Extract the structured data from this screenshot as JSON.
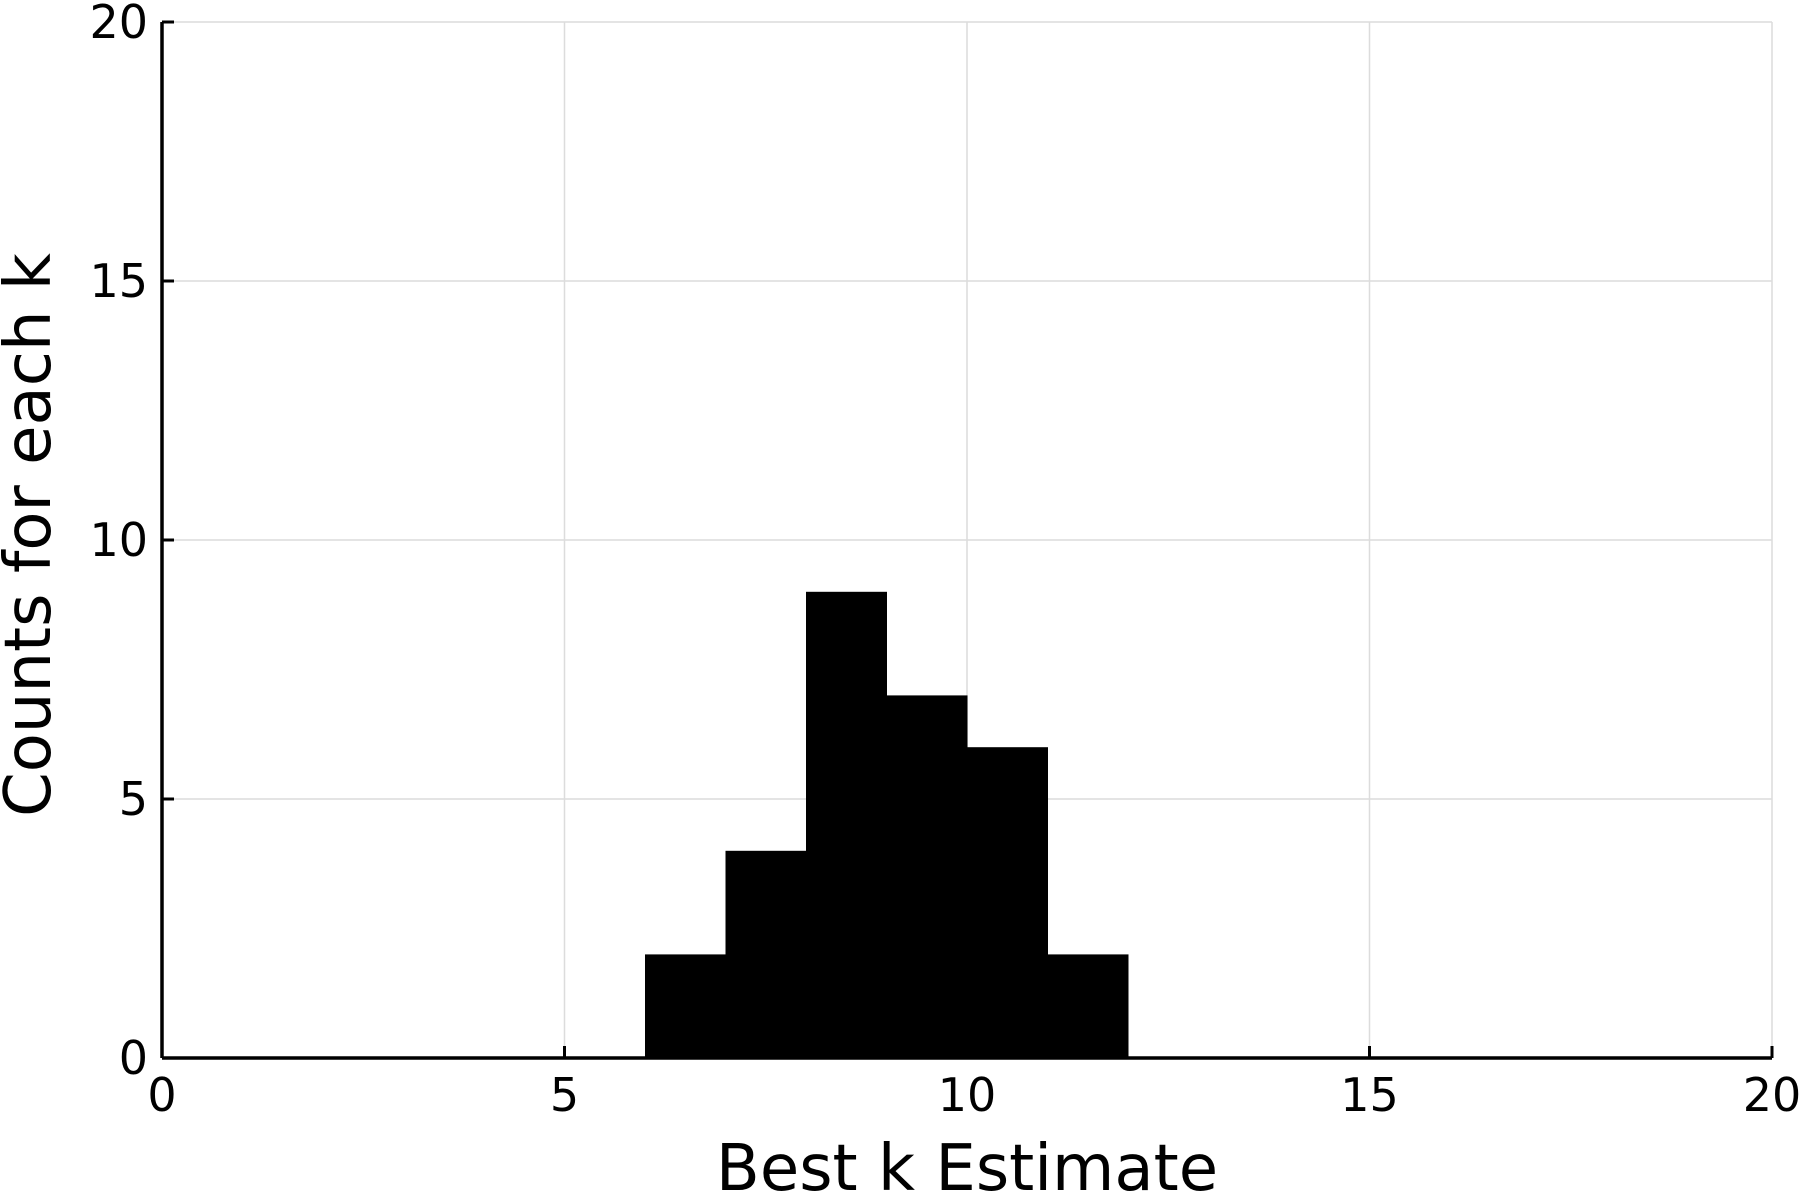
{
  "chart_data": {
    "type": "bar",
    "title": "",
    "xlabel": "Best k Estimate",
    "ylabel": "Counts for each k",
    "xlim": [
      0,
      20
    ],
    "ylim": [
      0,
      20
    ],
    "xticks": [
      0,
      5,
      10,
      15,
      20
    ],
    "yticks": [
      0,
      5,
      10,
      15,
      20
    ],
    "grid": true,
    "bins": [
      {
        "x0": 6,
        "x1": 7,
        "count": 2
      },
      {
        "x0": 7,
        "x1": 8,
        "count": 4
      },
      {
        "x0": 8,
        "x1": 9,
        "count": 9
      },
      {
        "x0": 9,
        "x1": 10,
        "count": 7
      },
      {
        "x0": 10,
        "x1": 11,
        "count": 6
      },
      {
        "x0": 11,
        "x1": 12,
        "count": 2
      }
    ],
    "bar_color": "#000000"
  }
}
